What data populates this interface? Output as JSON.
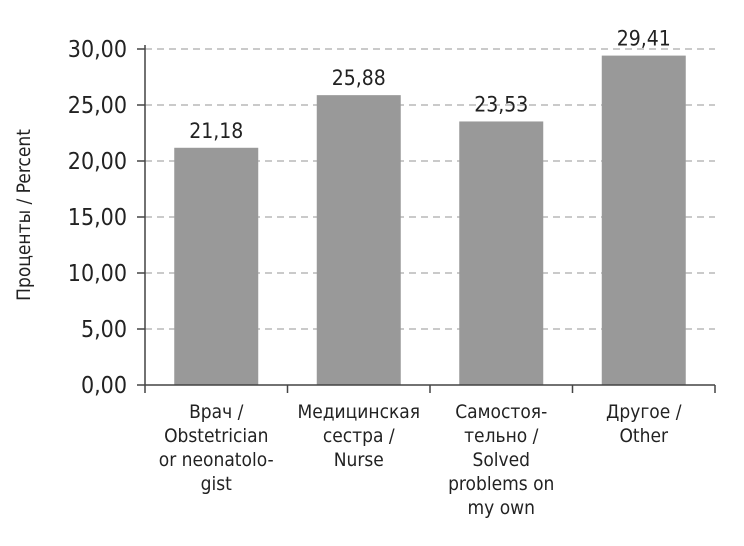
{
  "chart_data": {
    "type": "bar",
    "categories": [
      [
        "Врач /",
        "Obstetrician",
        "or neonatolo-",
        "gist"
      ],
      [
        "Медицинская",
        "сестра /",
        "Nurse"
      ],
      [
        "Самостоя-",
        "тельно /",
        "Solved",
        "problems on",
        "my own"
      ],
      [
        "Другое /",
        "Other"
      ]
    ],
    "values": [
      21.18,
      25.88,
      23.53,
      29.41
    ],
    "value_labels": [
      "21,18",
      "25,88",
      "23,53",
      "29,41"
    ],
    "ylabel": "Проценты / Percent",
    "ylim": [
      0,
      30
    ],
    "yticks": [
      0,
      5,
      10,
      15,
      20,
      25,
      30
    ],
    "ytick_labels": [
      "0,00",
      "5,00",
      "10,00",
      "15,00",
      "20,00",
      "25,00",
      "30,00"
    ],
    "grid": true,
    "bar_color": "#999999",
    "grid_color": "#aaaaaa"
  }
}
